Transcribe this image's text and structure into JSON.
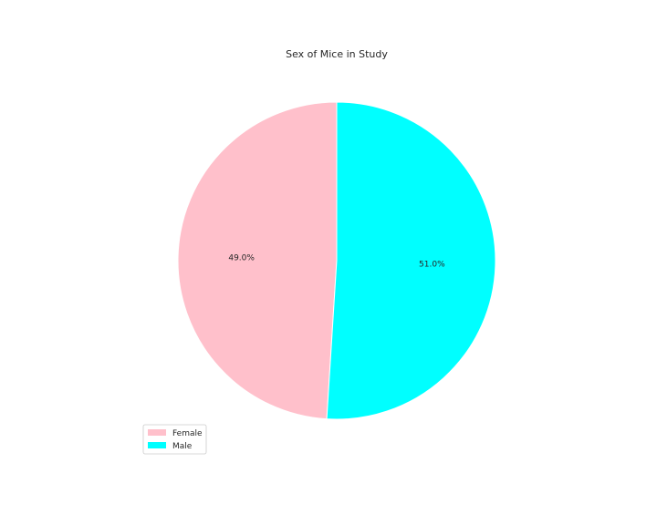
{
  "chart_data": {
    "type": "pie",
    "title": "Sex of Mice in Study",
    "categories": [
      "Female",
      "Male"
    ],
    "values": [
      49.0,
      51.0
    ],
    "labels": [
      "49.0%",
      "51.0%"
    ],
    "colors": [
      "#ffc0cb",
      "#00ffff"
    ],
    "start_angle_deg": 90,
    "direction": "counterclockwise",
    "legend_position": "lower-left"
  }
}
